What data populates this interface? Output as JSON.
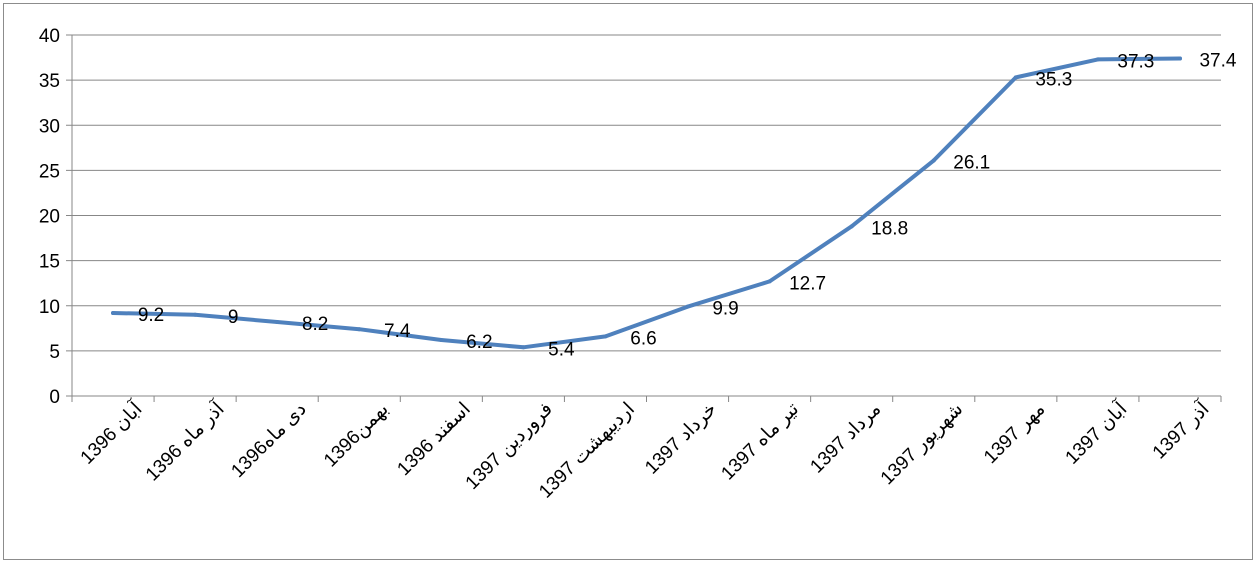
{
  "chart_data": {
    "type": "line",
    "categories": [
      "آبان 1396",
      "آذر ماه 1396",
      "دی ماه1396",
      "بهمن1396",
      "اسفند 1396",
      "فروردین 1397",
      "اردیبهشت 1397",
      "خرداد 1397",
      "تیر ماه 1397",
      "مرداد 1397",
      "شهریور 1397",
      "مهر 1397",
      "آبان 1397",
      "آذر 1397"
    ],
    "values": [
      9.2,
      9,
      8.2,
      7.4,
      6.2,
      5.4,
      6.6,
      9.9,
      12.7,
      18.8,
      26.1,
      35.3,
      37.3,
      37.4
    ],
    "data_labels": [
      "9.2",
      "9",
      "8.2",
      "7.4",
      "6.2",
      "5.4",
      "6.6",
      "9.9",
      "12.7",
      "18.8",
      "26.1",
      "35.3",
      "37.3",
      "37.4"
    ],
    "yticks": [
      "0",
      "5",
      "10",
      "15",
      "20",
      "25",
      "30",
      "35",
      "40"
    ],
    "ylim": [
      0,
      40
    ],
    "grid": true,
    "legend": "none",
    "title": "",
    "xlabel": "",
    "ylabel": "",
    "colors": {
      "line": "#4f81bd",
      "grid": "#878787",
      "axis": "#878787"
    }
  }
}
